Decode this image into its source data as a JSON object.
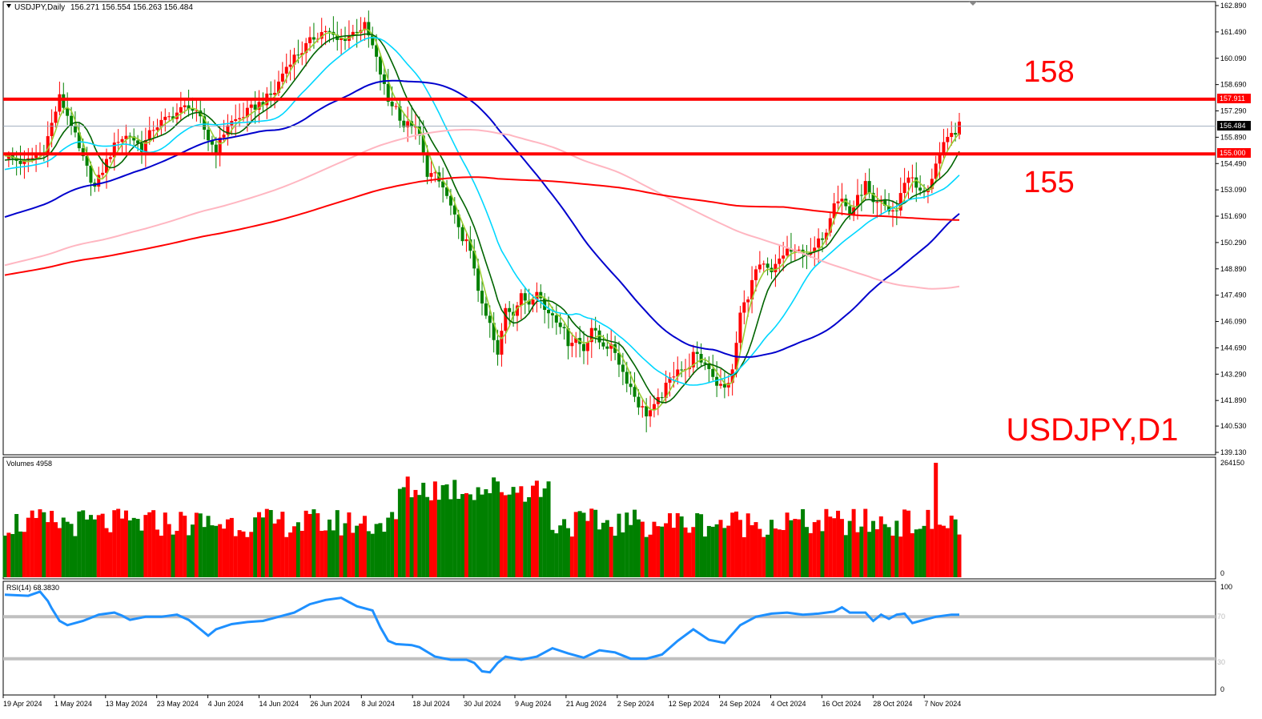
{
  "chart_header": {
    "symbol_text": "USDJPY,Daily",
    "ohlc_text": "156.271 156.554 156.263 156.484"
  },
  "big_label": "USDJPY,D1",
  "level_labels": {
    "upper": "158",
    "lower": "155"
  },
  "price_axis": {
    "ticks": [
      "162.890",
      "161.490",
      "160.090",
      "158.690",
      "157.290",
      "155.890",
      "154.490",
      "153.090",
      "151.690",
      "150.290",
      "148.890",
      "147.490",
      "146.090",
      "144.690",
      "143.290",
      "141.890",
      "140.530",
      "139.130"
    ],
    "tag_resistance": "157.911",
    "tag_last": "156.484",
    "tag_support": "155.000"
  },
  "date_axis": {
    "labels": [
      "19 Apr 2024",
      "1 May 2024",
      "13 May 2024",
      "23 May 2024",
      "4 Jun 2024",
      "14 Jun 2024",
      "26 Jun 2024",
      "8 Jul 2024",
      "18 Jul 2024",
      "30 Jul 2024",
      "9 Aug 2024",
      "21 Aug 2024",
      "2 Sep 2024",
      "12 Sep 2024",
      "24 Sep 2024",
      "4 Oct 2024",
      "16 Oct 2024",
      "28 Oct 2024",
      "7 Nov 2024"
    ]
  },
  "volume_panel": {
    "title": "Volumes 4958",
    "max_label": "264150",
    "min_label": "0"
  },
  "rsi_panel": {
    "title": "RSI(14) 68.3830",
    "label_100": "100",
    "label_70": "70",
    "label_30": "30",
    "label_0": "0"
  },
  "chart_data": {
    "type": "candlestick",
    "symbol": "USDJPY",
    "timeframe": "Daily",
    "last_ohlc": {
      "open": 156.271,
      "high": 156.554,
      "low": 156.263,
      "close": 156.484
    },
    "ylim": [
      139.13,
      162.89
    ],
    "horizontal_levels": [
      157.911,
      155.0
    ],
    "close_path": [
      [
        0,
        154.9
      ],
      [
        5,
        154.5
      ],
      [
        10,
        155.2
      ],
      [
        14,
        158.0
      ],
      [
        17,
        156.6
      ],
      [
        19,
        155.2
      ],
      [
        23,
        153.2
      ],
      [
        26,
        154.6
      ],
      [
        29,
        155.8
      ],
      [
        32,
        156.0
      ],
      [
        35,
        155.3
      ],
      [
        38,
        156.4
      ],
      [
        41,
        156.8
      ],
      [
        44,
        157.2
      ],
      [
        47,
        157.6
      ],
      [
        50,
        156.8
      ],
      [
        52,
        155.8
      ],
      [
        54,
        155.2
      ],
      [
        57,
        156.6
      ],
      [
        60,
        156.9
      ],
      [
        63,
        157.4
      ],
      [
        66,
        157.8
      ],
      [
        69,
        158.3
      ],
      [
        71,
        159.3
      ],
      [
        73,
        160.0
      ],
      [
        76,
        160.5
      ],
      [
        79,
        161.2
      ],
      [
        82,
        161.6
      ],
      [
        85,
        161.0
      ],
      [
        88,
        161.3
      ],
      [
        90,
        161.6
      ],
      [
        92,
        161.8
      ],
      [
        94,
        160.7
      ],
      [
        96,
        159.3
      ],
      [
        98,
        157.8
      ],
      [
        100,
        157.5
      ],
      [
        102,
        156.5
      ],
      [
        104,
        156.6
      ],
      [
        106,
        155.9
      ],
      [
        108,
        154.0
      ],
      [
        110,
        153.8
      ],
      [
        112,
        153.2
      ],
      [
        114,
        152.2
      ],
      [
        116,
        150.9
      ],
      [
        118,
        150.3
      ],
      [
        120,
        149.0
      ],
      [
        122,
        146.8
      ],
      [
        124,
        145.9
      ],
      [
        126,
        144.2
      ],
      [
        128,
        146.9
      ],
      [
        130,
        146.6
      ],
      [
        132,
        147.4
      ],
      [
        134,
        147.1
      ],
      [
        136,
        147.9
      ],
      [
        138,
        146.7
      ],
      [
        140,
        146.5
      ],
      [
        142,
        146.0
      ],
      [
        144,
        145.0
      ],
      [
        146,
        145.2
      ],
      [
        148,
        144.6
      ],
      [
        150,
        145.8
      ],
      [
        152,
        145.0
      ],
      [
        154,
        144.8
      ],
      [
        156,
        144.5
      ],
      [
        158,
        143.4
      ],
      [
        160,
        142.6
      ],
      [
        162,
        141.7
      ],
      [
        164,
        141.2
      ],
      [
        166,
        141.5
      ],
      [
        168,
        142.2
      ],
      [
        170,
        143.0
      ],
      [
        172,
        143.7
      ],
      [
        174,
        143.4
      ],
      [
        176,
        144.3
      ],
      [
        178,
        144.0
      ],
      [
        180,
        143.7
      ],
      [
        182,
        142.8
      ],
      [
        184,
        142.5
      ],
      [
        186,
        143.4
      ],
      [
        188,
        146.5
      ],
      [
        190,
        147.5
      ],
      [
        192,
        148.8
      ],
      [
        194,
        149.0
      ],
      [
        196,
        148.6
      ],
      [
        198,
        149.4
      ],
      [
        200,
        149.9
      ],
      [
        202,
        149.7
      ],
      [
        204,
        149.9
      ],
      [
        206,
        149.6
      ],
      [
        208,
        150.3
      ],
      [
        210,
        151.0
      ],
      [
        212,
        152.6
      ],
      [
        214,
        152.6
      ],
      [
        216,
        151.8
      ],
      [
        218,
        152.6
      ],
      [
        220,
        153.4
      ],
      [
        222,
        152.2
      ],
      [
        224,
        152.4
      ],
      [
        226,
        152.0
      ],
      [
        228,
        152.0
      ],
      [
        230,
        153.6
      ],
      [
        232,
        153.8
      ],
      [
        234,
        152.9
      ],
      [
        236,
        153.0
      ],
      [
        238,
        154.6
      ],
      [
        240,
        155.4
      ],
      [
        242,
        156.0
      ],
      [
        244,
        156.48
      ]
    ],
    "lag_points": 244,
    "moving_averages": [
      {
        "period": "short",
        "color": "#9acd32"
      },
      {
        "period": "medium",
        "color": "#006400"
      },
      {
        "period": "medium-long",
        "color": "#00d7ff"
      },
      {
        "period": "long",
        "color": "#0000cd"
      },
      {
        "period": "very long",
        "color": "#ffb6c1"
      },
      {
        "period": "longest",
        "color": "#ff0000"
      }
    ],
    "rsi_levels": [
      70,
      30
    ],
    "rsi_path": [
      [
        0,
        91
      ],
      [
        6,
        90
      ],
      [
        9,
        94
      ],
      [
        11,
        85
      ],
      [
        12,
        78
      ],
      [
        14,
        66
      ],
      [
        16,
        62
      ],
      [
        20,
        66
      ],
      [
        24,
        72
      ],
      [
        28,
        74
      ],
      [
        30,
        71
      ],
      [
        32,
        67
      ],
      [
        36,
        70
      ],
      [
        40,
        70
      ],
      [
        44,
        72
      ],
      [
        47,
        67
      ],
      [
        50,
        58
      ],
      [
        52,
        52
      ],
      [
        54,
        58
      ],
      [
        58,
        63
      ],
      [
        62,
        65
      ],
      [
        66,
        66
      ],
      [
        70,
        70
      ],
      [
        74,
        74
      ],
      [
        78,
        82
      ],
      [
        82,
        86
      ],
      [
        86,
        88
      ],
      [
        88,
        84
      ],
      [
        90,
        80
      ],
      [
        94,
        76
      ],
      [
        96,
        60
      ],
      [
        98,
        47
      ],
      [
        100,
        44
      ],
      [
        104,
        43
      ],
      [
        106,
        41
      ],
      [
        110,
        32
      ],
      [
        114,
        29
      ],
      [
        118,
        29
      ],
      [
        120,
        26
      ],
      [
        122,
        18
      ],
      [
        124,
        17
      ],
      [
        126,
        26
      ],
      [
        128,
        32
      ],
      [
        132,
        29
      ],
      [
        136,
        32
      ],
      [
        140,
        40
      ],
      [
        144,
        35
      ],
      [
        148,
        31
      ],
      [
        152,
        38
      ],
      [
        156,
        36
      ],
      [
        160,
        30
      ],
      [
        164,
        30
      ],
      [
        168,
        34
      ],
      [
        172,
        47
      ],
      [
        176,
        58
      ],
      [
        180,
        48
      ],
      [
        184,
        45
      ],
      [
        188,
        62
      ],
      [
        192,
        70
      ],
      [
        196,
        73
      ],
      [
        200,
        74
      ],
      [
        204,
        72
      ],
      [
        208,
        73
      ],
      [
        212,
        75
      ],
      [
        214,
        79
      ],
      [
        216,
        74
      ],
      [
        220,
        74
      ],
      [
        222,
        66
      ],
      [
        224,
        72
      ],
      [
        226,
        68
      ],
      [
        228,
        72
      ],
      [
        230,
        73
      ],
      [
        232,
        64
      ],
      [
        234,
        66
      ],
      [
        238,
        70
      ],
      [
        242,
        72
      ],
      [
        244,
        72
      ]
    ],
    "colors": {
      "bull": "#ff0000",
      "bear": "#008000",
      "levels": "#ff0000",
      "rsi": "#1e90ff"
    }
  }
}
